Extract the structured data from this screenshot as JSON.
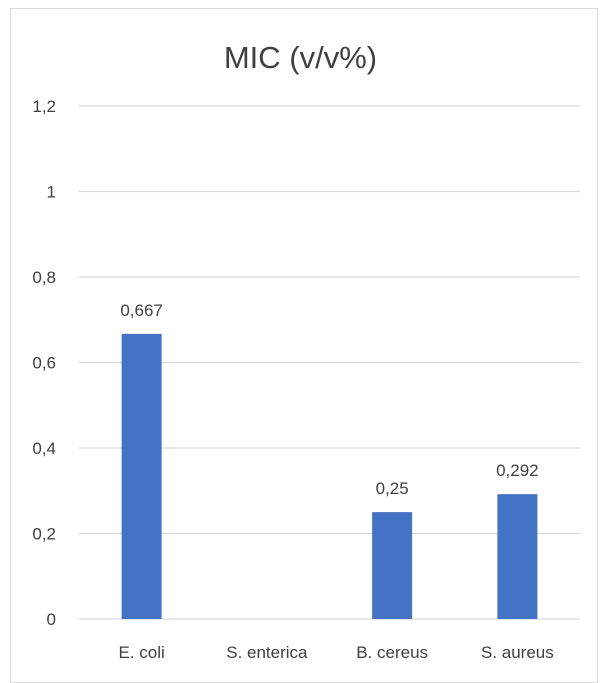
{
  "chart_data": {
    "type": "bar",
    "title": "MIC (v/v%)",
    "categories": [
      "E. coli",
      "S. enterica",
      "B. cereus",
      "S. aureus"
    ],
    "values": [
      0.667,
      0,
      0.25,
      0.292
    ],
    "data_labels": [
      "0,667",
      "",
      "0,25",
      "0,292"
    ],
    "y_ticks": [
      0,
      0.2,
      0.4,
      0.6,
      0.8,
      1,
      1.2
    ],
    "y_tick_labels": [
      "0",
      "0,2",
      "0,4",
      "0,6",
      "0,8",
      "1",
      "1,2"
    ],
    "ylim": [
      0,
      1.2
    ],
    "xlabel": "",
    "ylabel": "",
    "grid": true,
    "legend": "none",
    "bar_color": "#4472C4",
    "grid_color": "#d9d9d9"
  }
}
